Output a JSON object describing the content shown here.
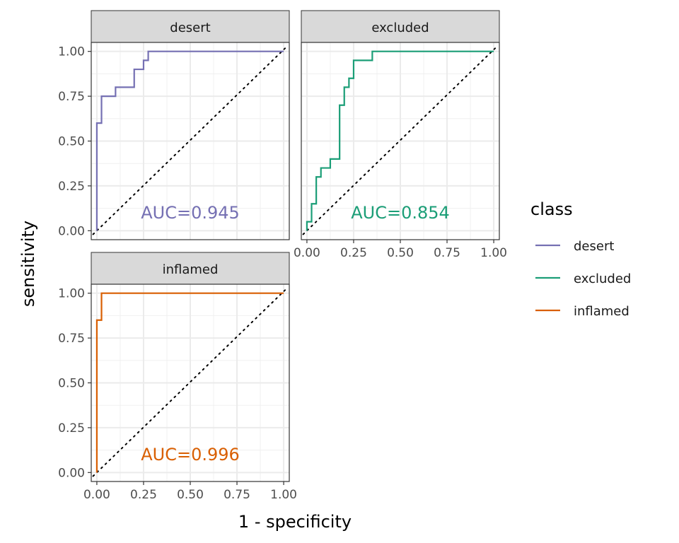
{
  "chart_data": {
    "type": "line",
    "xlabel": "1 - specificity",
    "ylabel": "sensitivity",
    "xlim": [
      -0.03,
      1.03
    ],
    "ylim": [
      -0.05,
      1.05
    ],
    "x_ticks": [
      "0.00",
      "0.25",
      "0.50",
      "0.75",
      "1.00"
    ],
    "y_ticks": [
      "0.00",
      "0.25",
      "0.50",
      "0.75",
      "1.00"
    ],
    "grid": true,
    "legend": {
      "title": "class",
      "placement": "right",
      "entries": [
        {
          "label": "desert",
          "color": "#7570B3"
        },
        {
          "label": "excluded",
          "color": "#1B9E77"
        },
        {
          "label": "inflamed",
          "color": "#D95F02"
        }
      ]
    },
    "panels": [
      {
        "strip": "desert",
        "color": "#7570B3",
        "auc_label": "AUC=0.945",
        "points": [
          [
            0,
            0
          ],
          [
            0,
            0.6
          ],
          [
            0.025,
            0.6
          ],
          [
            0.025,
            0.75
          ],
          [
            0.1,
            0.75
          ],
          [
            0.1,
            0.8
          ],
          [
            0.2,
            0.8
          ],
          [
            0.2,
            0.9
          ],
          [
            0.25,
            0.9
          ],
          [
            0.25,
            0.95
          ],
          [
            0.275,
            0.95
          ],
          [
            0.275,
            1.0
          ],
          [
            1.0,
            1.0
          ]
        ]
      },
      {
        "strip": "excluded",
        "color": "#1B9E77",
        "auc_label": "AUC=0.854",
        "points": [
          [
            0,
            0
          ],
          [
            0,
            0.05
          ],
          [
            0.025,
            0.05
          ],
          [
            0.025,
            0.15
          ],
          [
            0.05,
            0.15
          ],
          [
            0.05,
            0.3
          ],
          [
            0.075,
            0.3
          ],
          [
            0.075,
            0.35
          ],
          [
            0.125,
            0.35
          ],
          [
            0.125,
            0.4
          ],
          [
            0.175,
            0.4
          ],
          [
            0.175,
            0.7
          ],
          [
            0.2,
            0.7
          ],
          [
            0.2,
            0.8
          ],
          [
            0.225,
            0.8
          ],
          [
            0.225,
            0.85
          ],
          [
            0.25,
            0.85
          ],
          [
            0.25,
            0.95
          ],
          [
            0.35,
            0.95
          ],
          [
            0.35,
            1.0
          ],
          [
            1.0,
            1.0
          ]
        ]
      },
      {
        "strip": "inflamed",
        "color": "#D95F02",
        "auc_label": "AUC=0.996",
        "points": [
          [
            0,
            0
          ],
          [
            0,
            0.85
          ],
          [
            0.025,
            0.85
          ],
          [
            0.025,
            1.0
          ],
          [
            1.0,
            1.0
          ]
        ]
      }
    ]
  }
}
